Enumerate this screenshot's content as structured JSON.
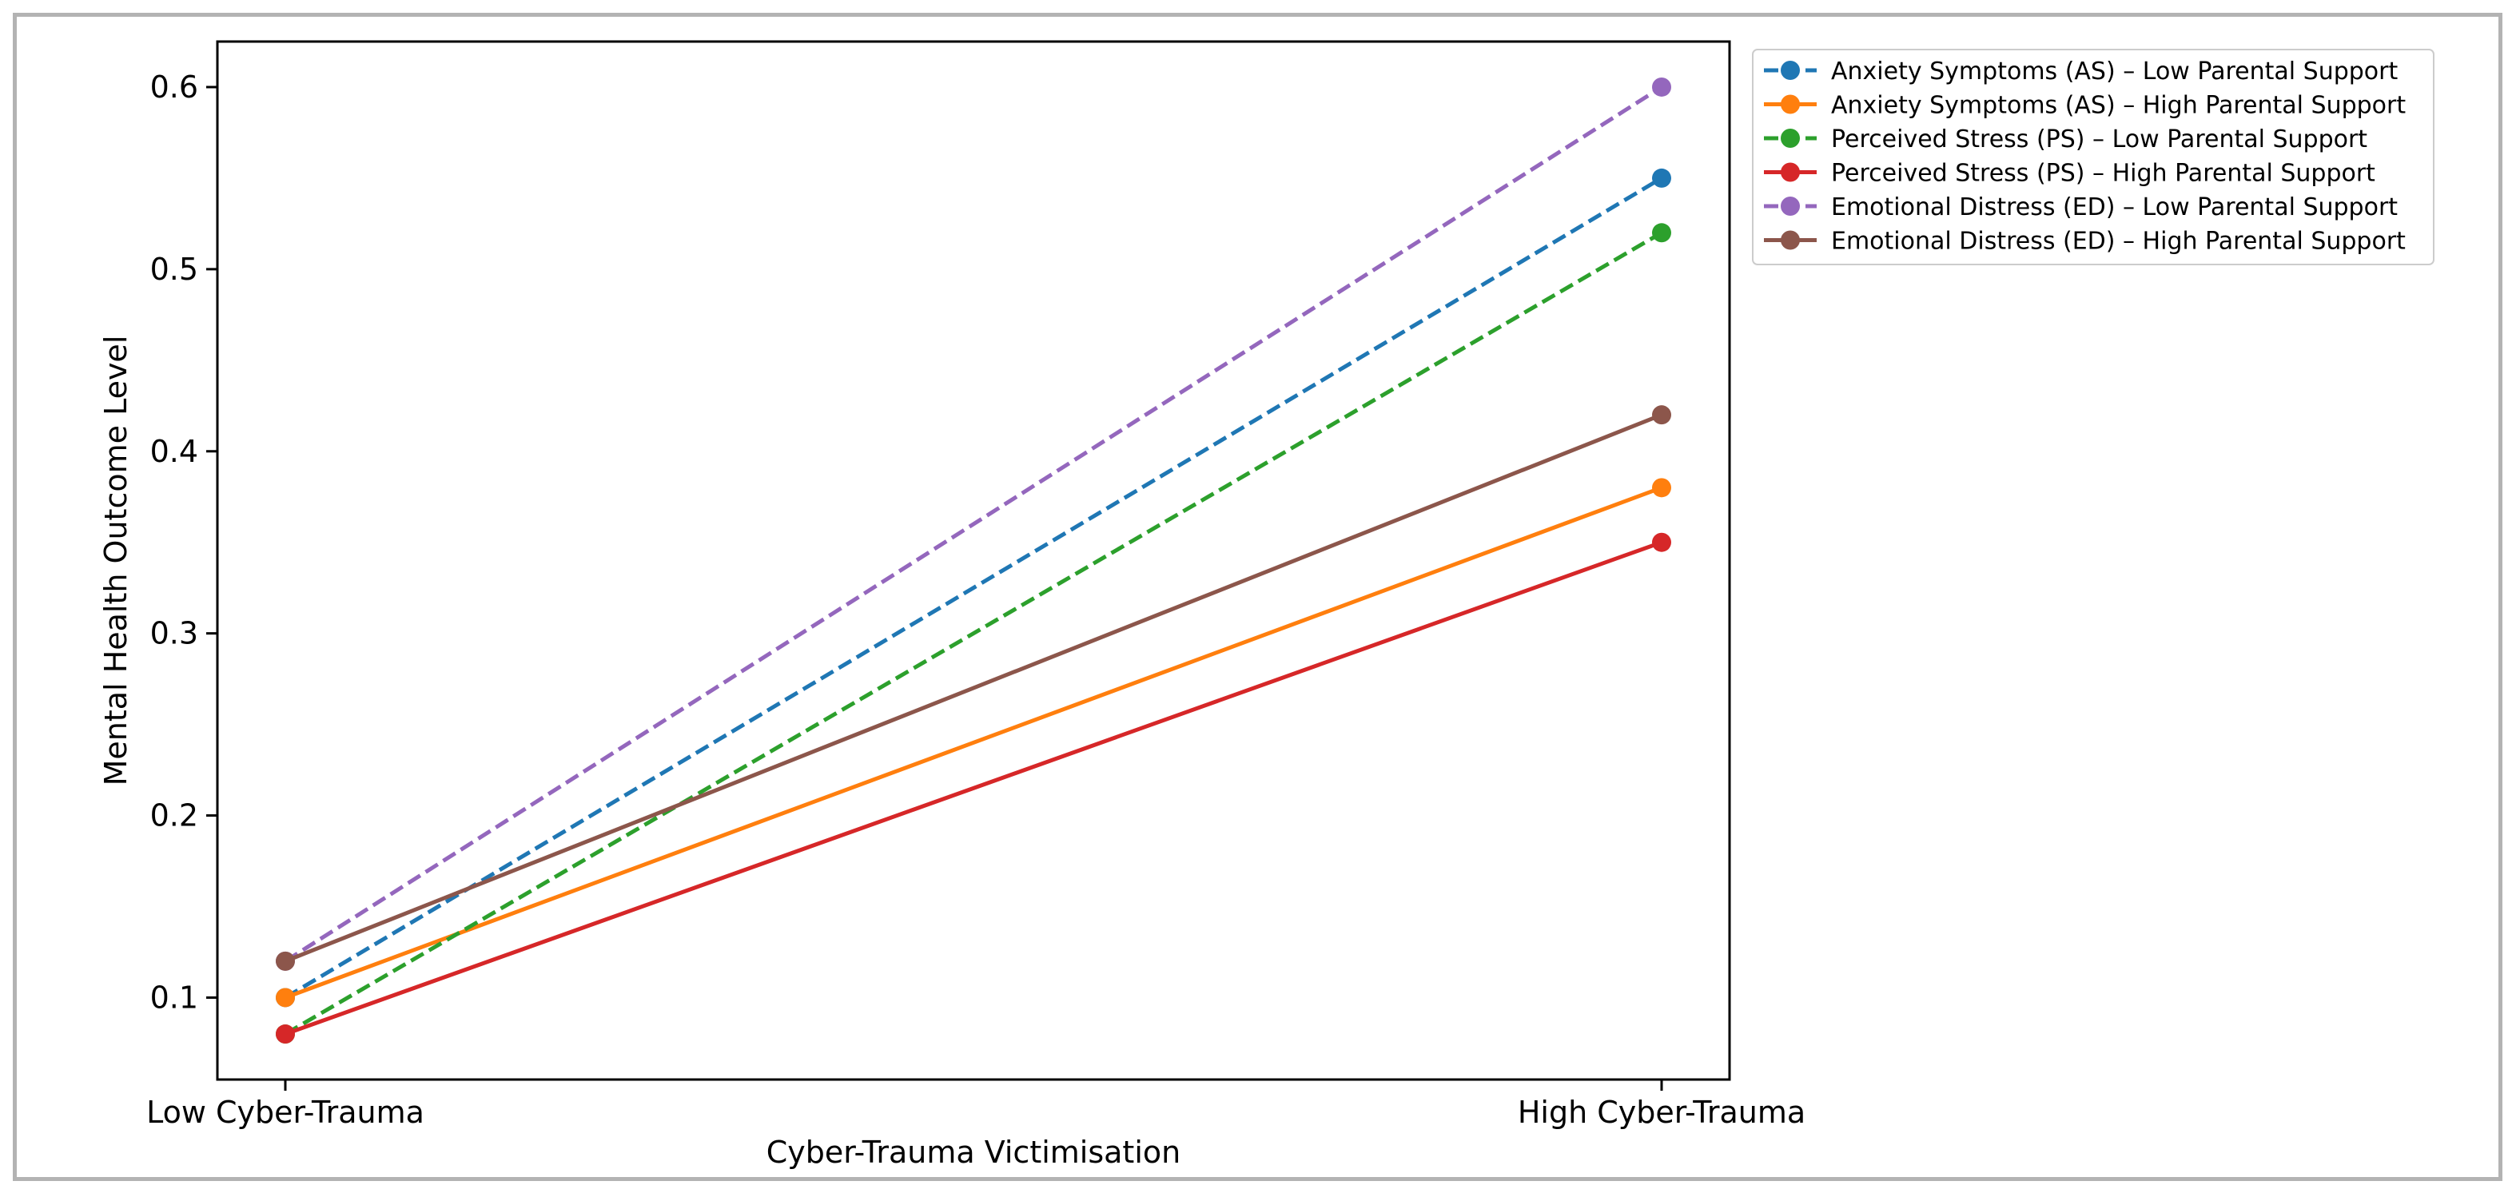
{
  "chart_data": {
    "type": "line",
    "title": "",
    "xlabel": "Cyber-Trauma Victimisation",
    "ylabel": "Mental Health Outcome Level",
    "categories": [
      "Low Cyber-Trauma",
      "High Cyber-Trauma"
    ],
    "ylim": [
      0.055,
      0.625
    ],
    "yticks": [
      "0.1",
      "0.2",
      "0.3",
      "0.4",
      "0.5",
      "0.6"
    ],
    "grid": false,
    "legend_position": "outside-top-right",
    "series": [
      {
        "name": "Anxiety Symptoms (AS) – Low Parental Support",
        "values": [
          0.1,
          0.55
        ],
        "color": "#1f77b4",
        "dashed": true
      },
      {
        "name": "Anxiety Symptoms (AS) – High Parental Support",
        "values": [
          0.1,
          0.38
        ],
        "color": "#ff7f0e",
        "dashed": false
      },
      {
        "name": "Perceived Stress (PS) – Low Parental Support",
        "values": [
          0.08,
          0.52
        ],
        "color": "#2ca02c",
        "dashed": true
      },
      {
        "name": "Perceived Stress (PS) – High Parental Support",
        "values": [
          0.08,
          0.35
        ],
        "color": "#d62728",
        "dashed": false
      },
      {
        "name": "Emotional Distress (ED) – Low Parental Support",
        "values": [
          0.12,
          0.6
        ],
        "color": "#9467bd",
        "dashed": true
      },
      {
        "name": "Emotional Distress (ED) – High Parental Support",
        "values": [
          0.12,
          0.42
        ],
        "color": "#8c564b",
        "dashed": false
      }
    ]
  }
}
